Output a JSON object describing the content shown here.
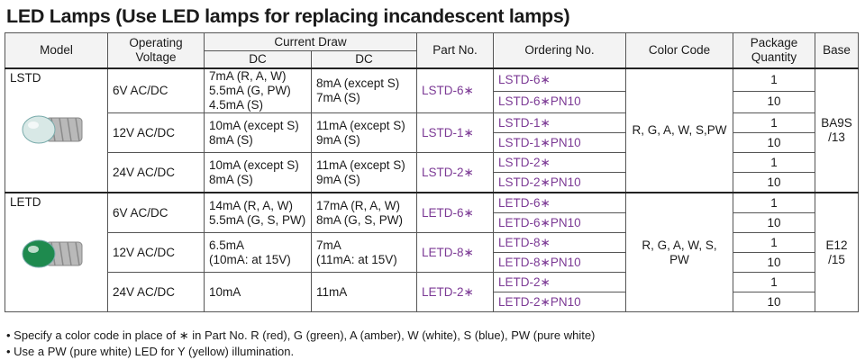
{
  "title": "LED Lamps (Use LED lamps for replacing incandescent lamps)",
  "headers": {
    "model": "Model",
    "operating_voltage": "Operating Voltage",
    "current_draw": "Current Draw",
    "dc1": "DC",
    "dc2": "DC",
    "part_no": "Part No.",
    "ordering_no": "Ordering No.",
    "color_code": "Color Code",
    "package_quantity": "Package Quantity",
    "base": "Base"
  },
  "groups": [
    {
      "model": "LSTD",
      "color_code": "R, G, A, W, S,PW",
      "base": "BA9S /13",
      "lamp_color": "#d8e8e6",
      "rows": [
        {
          "voltage": "6V AC/DC",
          "dc1": "7mA (R, A, W)\n5.5mA (G, PW)\n4.5mA (S)",
          "dc2": "8mA (except S)\n7mA (S)",
          "part": "LSTD-6∗",
          "orders": [
            {
              "no": "LSTD-6∗",
              "qty": "1"
            },
            {
              "no": "LSTD-6∗PN10",
              "qty": "10"
            }
          ]
        },
        {
          "voltage": "12V AC/DC",
          "dc1": "10mA (except S)\n8mA (S)",
          "dc2": "11mA (except S)\n9mA (S)",
          "part": "LSTD-1∗",
          "orders": [
            {
              "no": "LSTD-1∗",
              "qty": "1"
            },
            {
              "no": "LSTD-1∗PN10",
              "qty": "10"
            }
          ]
        },
        {
          "voltage": "24V AC/DC",
          "dc1": "10mA (except S)\n8mA (S)",
          "dc2": "11mA (except S)\n9mA (S)",
          "part": "LSTD-2∗",
          "orders": [
            {
              "no": "LSTD-2∗",
              "qty": "1"
            },
            {
              "no": "LSTD-2∗PN10",
              "qty": "10"
            }
          ]
        }
      ]
    },
    {
      "model": "LETD",
      "color_code": "R, G, A, W, S, PW",
      "base": "E12 /15",
      "lamp_color": "#1e8a4e",
      "rows": [
        {
          "voltage": "6V AC/DC",
          "dc1": "14mA (R, A, W)\n5.5mA (G, S, PW)",
          "dc2": "17mA (R, A, W)\n8mA (G, S, PW)",
          "part": "LETD-6∗",
          "orders": [
            {
              "no": "LETD-6∗",
              "qty": "1"
            },
            {
              "no": "LETD-6∗PN10",
              "qty": "10"
            }
          ]
        },
        {
          "voltage": "12V AC/DC",
          "dc1": "6.5mA\n(10mA: at 15V)",
          "dc2": "7mA\n(11mA: at 15V)",
          "part": "LETD-8∗",
          "orders": [
            {
              "no": "LETD-8∗",
              "qty": "1"
            },
            {
              "no": "LETD-8∗PN10",
              "qty": "10"
            }
          ]
        },
        {
          "voltage": "24V AC/DC",
          "dc1": "10mA",
          "dc2": "11mA",
          "part": "LETD-2∗",
          "orders": [
            {
              "no": "LETD-2∗",
              "qty": "1"
            },
            {
              "no": "LETD-2∗PN10",
              "qty": "10"
            }
          ]
        }
      ]
    }
  ],
  "notes": [
    "• Specify a color code in place of ∗ in Part No. R (red), G (green), A (amber), W (white), S (blue), PW (pure white)",
    "• Use a PW (pure white) LED for Y (yellow) illumination."
  ],
  "colors": {
    "part_text": "#7c3a95",
    "header_bg": "#f3f3f3",
    "border": "#555555"
  }
}
